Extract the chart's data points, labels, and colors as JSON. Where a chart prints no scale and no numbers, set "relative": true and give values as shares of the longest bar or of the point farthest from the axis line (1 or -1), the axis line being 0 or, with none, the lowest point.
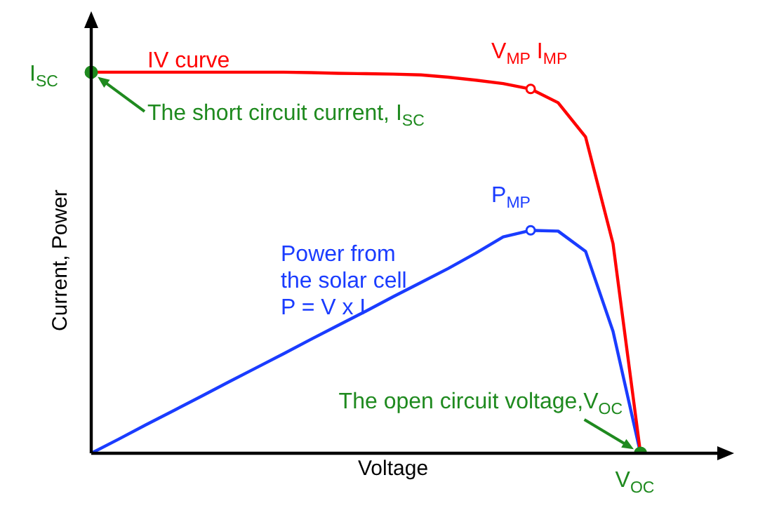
{
  "chart_data": {
    "type": "line",
    "relative": true,
    "xlabel": "Voltage",
    "ylabel": "Current, Power",
    "line_style": "solid",
    "legend": false,
    "grid": false,
    "categories": [
      null,
      null,
      null,
      null,
      null,
      null,
      null,
      null,
      null,
      null,
      null,
      null,
      null,
      null,
      null,
      null,
      null,
      null,
      null,
      null,
      null,
      null,
      null,
      null
    ],
    "series": [
      {
        "color": "#ff0000",
        "values": [
          1,
          1,
          1,
          1,
          1,
          1,
          1,
          1,
          0.999,
          0.997,
          0.996,
          0.995,
          0.993,
          0.987,
          0.979,
          0.97,
          0.956,
          0.92,
          0.83,
          0.55,
          0,
          null,
          null,
          null
        ]
      },
      {
        "color": "#1a3cff",
        "values": [
          0,
          0.037,
          0.075,
          0.112,
          0.149,
          0.187,
          0.224,
          0.261,
          0.299,
          0.336,
          0.373,
          0.411,
          0.448,
          0.485,
          0.525,
          0.568,
          0.585,
          0.583,
          0.53,
          0.32,
          0,
          null,
          null,
          null
        ]
      }
    ],
    "annotations": [
      "IV curve",
      "V$_{MP}$ I$_{MP}$",
      "P$_{MP}$",
      "Power from\nthe solar cell\nP = V x I",
      "The short circuit current, I$_{SC}$",
      "The open circuit voltage,V$_{OC}$",
      "I$_{SC}$",
      "V$_{OC}$"
    ]
  }
}
